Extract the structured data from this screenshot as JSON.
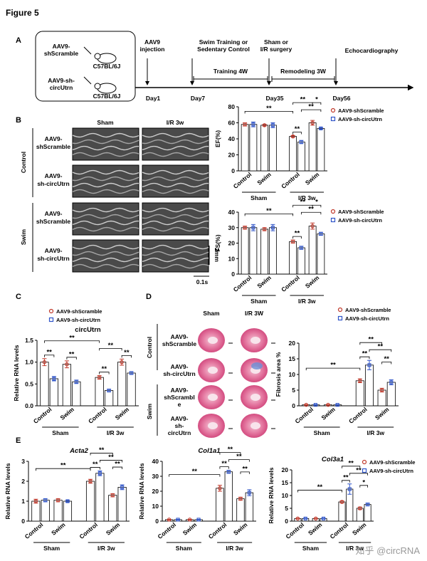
{
  "figure_title": "Figure 5",
  "panel_labels": [
    "A",
    "B",
    "C",
    "D",
    "E"
  ],
  "timeline": {
    "mice": [
      {
        "label": [
          "AAV9-",
          "shScramble"
        ],
        "strain": "C57BL/6J"
      },
      {
        "label": [
          "AAV9-sh-",
          "circUtrn"
        ],
        "strain": "C57BL/6J"
      }
    ],
    "events": [
      {
        "label": [
          "AAV9",
          "injection"
        ],
        "day": "Day1"
      },
      {
        "label": [
          "Swim Training or",
          "Sedentary Control"
        ],
        "day": "Day7"
      },
      {
        "label": [
          "Sham or",
          "I/R surgery"
        ],
        "day": "Day35"
      },
      {
        "label": [
          "Echocardiography"
        ],
        "day": "Day56"
      }
    ],
    "phases": [
      "Training 4W",
      "Remodeling 3W"
    ]
  },
  "echo": {
    "columns": [
      "Sham",
      "I/R 3w"
    ],
    "groups": [
      "Control",
      "Swim"
    ],
    "rows": [
      [
        "AAV9-",
        "shScramble"
      ],
      [
        "AAV9-",
        "sh-circUtrn"
      ],
      [
        "AAV9-",
        "shScramble"
      ],
      [
        "AAV9-",
        "sh-circUtrn"
      ]
    ],
    "scale_y": "2mm",
    "scale_x": "0.1s"
  },
  "histology": {
    "columns": [
      "Sham",
      "I/R 3W"
    ],
    "groups": [
      "Control",
      "Swim"
    ],
    "rows": [
      [
        "AAV9-",
        "shScramble"
      ],
      [
        "AAV9-",
        "sh-circUtrn"
      ],
      [
        "AAV9-",
        "shScrambl",
        "e"
      ],
      [
        "AAV9-",
        "sh-",
        "circUtrn"
      ]
    ]
  },
  "watermark": "知乎 @circRNA",
  "chart_data": [
    {
      "type": "bar",
      "ylabel": "EF(%)",
      "categories": [
        "Control",
        "Swim",
        "Control",
        "Swim"
      ],
      "groups": [
        "Sham",
        "I/R 3w"
      ],
      "series": [
        {
          "name": "AAV9-shScramble",
          "color": "#c0392b",
          "values": [
            58,
            57,
            43,
            60
          ],
          "errors": [
            2,
            1,
            1,
            3
          ]
        },
        {
          "name": "AAV9-sh-circUtrn",
          "color": "#2f54c8",
          "values": [
            58,
            57,
            36,
            53
          ],
          "errors": [
            3,
            3,
            2,
            1
          ]
        }
      ],
      "ylim": [
        0,
        80
      ],
      "yticks": [
        0,
        20,
        40,
        60,
        80
      ],
      "annotations": [
        "**",
        "**",
        "**",
        "*",
        "**"
      ],
      "legend": true
    },
    {
      "type": "bar",
      "ylabel": "FS(%)",
      "categories": [
        "Control",
        "Swim",
        "Control",
        "Swim"
      ],
      "groups": [
        "Sham",
        "I/R 3w"
      ],
      "series": [
        {
          "name": "AAV9-shScramble",
          "color": "#c0392b",
          "values": [
            30,
            29,
            21,
            31
          ],
          "errors": [
            1,
            1,
            1,
            2
          ]
        },
        {
          "name": "AAV9-sh-circUtrn",
          "color": "#2f54c8",
          "values": [
            30,
            30,
            17,
            26
          ],
          "errors": [
            2,
            2,
            1,
            1
          ]
        }
      ],
      "ylim": [
        0,
        40
      ],
      "yticks": [
        0,
        10,
        20,
        30,
        40
      ],
      "annotations": [
        "**",
        "**",
        "**",
        "*",
        "**"
      ],
      "legend": true
    },
    {
      "type": "bar",
      "title": "circUtrn",
      "ylabel": "Relative RNA levels",
      "categories": [
        "Control",
        "Swim",
        "Control",
        "Swim"
      ],
      "groups": [
        "Sham",
        "I/R 3w"
      ],
      "series": [
        {
          "name": "AAV9-shScramble",
          "color": "#c0392b",
          "values": [
            1.0,
            0.95,
            0.65,
            1.0
          ],
          "errors": [
            0.08,
            0.08,
            0.04,
            0.07
          ]
        },
        {
          "name": "AAV9-sh-circUtrn",
          "color": "#2f54c8",
          "values": [
            0.62,
            0.55,
            0.35,
            0.75
          ],
          "errors": [
            0.05,
            0.04,
            0.03,
            0.03
          ]
        }
      ],
      "ylim": [
        0,
        1.5
      ],
      "yticks": [
        {
          "value": 0,
          "label": "0.0"
        },
        0.5,
        {
          "value": 1,
          "label": "1.0"
        },
        1.5
      ],
      "annotations": [
        "**",
        "**",
        "**",
        "**",
        "**",
        "**"
      ],
      "legend": true
    },
    {
      "type": "bar",
      "ylabel": "Fibrosis area %",
      "categories": [
        "Control",
        "Swim",
        "Control",
        "Swim"
      ],
      "groups": [
        "Sham",
        "I/R 3w"
      ],
      "series": [
        {
          "name": "AAV9-shScramble",
          "color": "#c0392b",
          "values": [
            0.3,
            0.3,
            8,
            5
          ],
          "errors": [
            0.1,
            0.1,
            0.6,
            0.6
          ]
        },
        {
          "name": "AAV9-sh-circUtrn",
          "color": "#2f54c8",
          "values": [
            0.3,
            0.3,
            13,
            7.5
          ],
          "errors": [
            0.1,
            0.1,
            1.5,
            0.8
          ]
        }
      ],
      "ylim": [
        0,
        20
      ],
      "yticks": [
        0,
        5,
        10,
        15,
        20
      ],
      "annotations": [
        "**",
        "**",
        "**",
        "**",
        "**"
      ],
      "legend": true
    },
    {
      "type": "bar",
      "title": "Acta2",
      "title_italic": true,
      "ylabel": "Relative RNA levels",
      "categories": [
        "Control",
        "Swim",
        "Control",
        "Swim"
      ],
      "groups": [
        "Sham",
        "I/R 3w"
      ],
      "series": [
        {
          "name": "AAV9-shScramble",
          "color": "#c0392b",
          "values": [
            1.0,
            1.05,
            2.0,
            1.3
          ],
          "errors": [
            0.1,
            0.08,
            0.1,
            0.08
          ]
        },
        {
          "name": "AAV9-sh-circUtrn",
          "color": "#2f54c8",
          "values": [
            1.05,
            1.0,
            2.4,
            1.7
          ],
          "errors": [
            0.08,
            0.04,
            0.12,
            0.12
          ]
        }
      ],
      "ylim": [
        0,
        3
      ],
      "yticks": [
        0,
        1,
        2,
        3
      ],
      "annotations": [
        "**",
        "**",
        "**",
        "**",
        "**"
      ],
      "legend": false
    },
    {
      "type": "bar",
      "title": "Col1a1",
      "title_italic": true,
      "ylabel": "Relative RNA levels",
      "categories": [
        "Control",
        "Swim",
        "Control",
        "Swim"
      ],
      "groups": [
        "Sham",
        "I/R 3w"
      ],
      "series": [
        {
          "name": "AAV9-shScramble",
          "color": "#c0392b",
          "values": [
            1,
            1,
            22,
            15
          ],
          "errors": [
            0.2,
            0.2,
            2,
            1
          ]
        },
        {
          "name": "AAV9-sh-circUtrn",
          "color": "#2f54c8",
          "values": [
            1,
            1,
            33,
            19
          ],
          "errors": [
            0.2,
            0.2,
            1,
            2
          ]
        }
      ],
      "ylim": [
        0,
        40
      ],
      "yticks": [
        0,
        10,
        20,
        30,
        40
      ],
      "annotations": [
        "**",
        "**",
        "**",
        "**",
        "**"
      ],
      "legend": false
    },
    {
      "type": "bar",
      "title": "Col3a1",
      "title_italic": true,
      "ylabel": "Relative RNA levels",
      "categories": [
        "Control",
        "Swim",
        "Control",
        "Swim"
      ],
      "groups": [
        "Sham",
        "I/R 3w"
      ],
      "series": [
        {
          "name": "AAV9-shScramble",
          "color": "#c0392b",
          "values": [
            1,
            1,
            7.5,
            5
          ],
          "errors": [
            0.1,
            0.1,
            0.4,
            0.5
          ]
        },
        {
          "name": "AAV9-sh-circUtrn",
          "color": "#2f54c8",
          "values": [
            1,
            1,
            12.5,
            6.5
          ],
          "errors": [
            0.1,
            0.1,
            2,
            0.5
          ]
        }
      ],
      "ylim": [
        0,
        20
      ],
      "yticks": [
        0,
        5,
        10,
        15,
        20
      ],
      "annotations": [
        "**",
        "**",
        "**",
        "*",
        "**"
      ],
      "legend": true
    }
  ]
}
